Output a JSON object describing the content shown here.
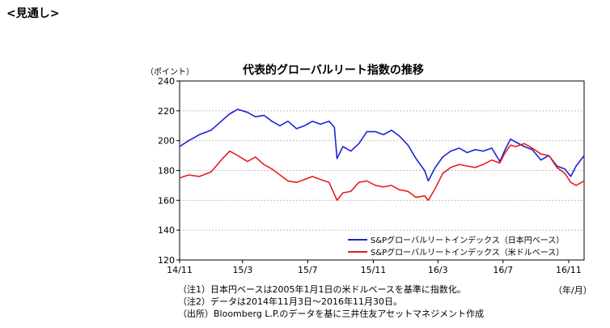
{
  "page": {
    "heading": "<見通し>"
  },
  "chart_data": {
    "type": "line",
    "title": "代表的グローバルリート指数の推移",
    "ylabel": "（ポイント）",
    "xlabel": "（年/月）",
    "ylim": [
      120,
      240
    ],
    "yticks": [
      "120",
      "140",
      "160",
      "180",
      "200",
      "220",
      "240"
    ],
    "xlim": [
      "2014-11-03",
      "2016-11-30"
    ],
    "xticks": [
      {
        "label": "14/11",
        "date": "2014-11-03"
      },
      {
        "label": "15/3",
        "date": "2015-03-01"
      },
      {
        "label": "15/7",
        "date": "2015-07-01"
      },
      {
        "label": "15/11",
        "date": "2015-11-01"
      },
      {
        "label": "16/3",
        "date": "2016-03-01"
      },
      {
        "label": "16/7",
        "date": "2016-07-01"
      },
      {
        "label": "16/11",
        "date": "2016-11-01"
      }
    ],
    "grid": true,
    "legend_position": "bottom-right",
    "series": [
      {
        "name": "S&Pグローバルリートインデックス（日本円ベース）",
        "color": "#1a23d6",
        "points": [
          [
            "2014-11-03",
            196
          ],
          [
            "2014-11-20",
            200
          ],
          [
            "2014-12-10",
            204
          ],
          [
            "2015-01-01",
            207
          ],
          [
            "2015-01-20",
            213
          ],
          [
            "2015-02-05",
            218
          ],
          [
            "2015-02-20",
            221
          ],
          [
            "2015-03-10",
            219
          ],
          [
            "2015-03-25",
            216
          ],
          [
            "2015-04-10",
            217
          ],
          [
            "2015-04-25",
            213
          ],
          [
            "2015-05-10",
            210
          ],
          [
            "2015-05-25",
            213
          ],
          [
            "2015-06-10",
            208
          ],
          [
            "2015-06-25",
            210
          ],
          [
            "2015-07-10",
            213
          ],
          [
            "2015-07-25",
            211
          ],
          [
            "2015-08-10",
            213
          ],
          [
            "2015-08-20",
            209
          ],
          [
            "2015-08-25",
            188
          ],
          [
            "2015-09-05",
            196
          ],
          [
            "2015-09-20",
            193
          ],
          [
            "2015-10-05",
            198
          ],
          [
            "2015-10-20",
            206
          ],
          [
            "2015-11-05",
            206
          ],
          [
            "2015-11-20",
            204
          ],
          [
            "2015-12-05",
            207
          ],
          [
            "2015-12-20",
            203
          ],
          [
            "2016-01-05",
            197
          ],
          [
            "2016-01-20",
            188
          ],
          [
            "2016-02-05",
            180
          ],
          [
            "2016-02-12",
            173
          ],
          [
            "2016-02-25",
            182
          ],
          [
            "2016-03-10",
            189
          ],
          [
            "2016-03-25",
            193
          ],
          [
            "2016-04-10",
            195
          ],
          [
            "2016-04-25",
            192
          ],
          [
            "2016-05-10",
            194
          ],
          [
            "2016-05-25",
            193
          ],
          [
            "2016-06-10",
            195
          ],
          [
            "2016-06-25",
            186
          ],
          [
            "2016-07-05",
            194
          ],
          [
            "2016-07-15",
            201
          ],
          [
            "2016-07-25",
            199
          ],
          [
            "2016-08-10",
            196
          ],
          [
            "2016-08-25",
            194
          ],
          [
            "2016-09-10",
            187
          ],
          [
            "2016-09-25",
            190
          ],
          [
            "2016-10-10",
            183
          ],
          [
            "2016-10-25",
            181
          ],
          [
            "2016-11-05",
            176
          ],
          [
            "2016-11-15",
            183
          ],
          [
            "2016-11-30",
            190
          ]
        ]
      },
      {
        "name": "S&Pグローバルリートインデックス（米ドルベース）",
        "color": "#e61e1e",
        "points": [
          [
            "2014-11-03",
            175
          ],
          [
            "2014-11-20",
            177
          ],
          [
            "2014-12-10",
            176
          ],
          [
            "2015-01-01",
            179
          ],
          [
            "2015-01-20",
            187
          ],
          [
            "2015-02-05",
            193
          ],
          [
            "2015-02-20",
            190
          ],
          [
            "2015-03-10",
            186
          ],
          [
            "2015-03-25",
            189
          ],
          [
            "2015-04-10",
            184
          ],
          [
            "2015-04-25",
            181
          ],
          [
            "2015-05-10",
            177
          ],
          [
            "2015-05-25",
            173
          ],
          [
            "2015-06-10",
            172
          ],
          [
            "2015-06-25",
            174
          ],
          [
            "2015-07-10",
            176
          ],
          [
            "2015-07-25",
            174
          ],
          [
            "2015-08-10",
            172
          ],
          [
            "2015-08-25",
            160
          ],
          [
            "2015-09-05",
            165
          ],
          [
            "2015-09-20",
            166
          ],
          [
            "2015-10-05",
            172
          ],
          [
            "2015-10-20",
            173
          ],
          [
            "2015-11-05",
            170
          ],
          [
            "2015-11-20",
            169
          ],
          [
            "2015-12-05",
            170
          ],
          [
            "2015-12-20",
            167
          ],
          [
            "2016-01-05",
            166
          ],
          [
            "2016-01-20",
            162
          ],
          [
            "2016-02-05",
            163
          ],
          [
            "2016-02-12",
            160
          ],
          [
            "2016-02-25",
            168
          ],
          [
            "2016-03-10",
            178
          ],
          [
            "2016-03-25",
            182
          ],
          [
            "2016-04-10",
            184
          ],
          [
            "2016-04-25",
            183
          ],
          [
            "2016-05-10",
            182
          ],
          [
            "2016-05-25",
            184
          ],
          [
            "2016-06-10",
            187
          ],
          [
            "2016-06-25",
            185
          ],
          [
            "2016-07-05",
            192
          ],
          [
            "2016-07-15",
            197
          ],
          [
            "2016-07-25",
            196
          ],
          [
            "2016-08-10",
            198
          ],
          [
            "2016-08-25",
            195
          ],
          [
            "2016-09-10",
            191
          ],
          [
            "2016-09-25",
            190
          ],
          [
            "2016-10-10",
            182
          ],
          [
            "2016-10-25",
            178
          ],
          [
            "2016-11-05",
            172
          ],
          [
            "2016-11-15",
            170
          ],
          [
            "2016-11-30",
            173
          ]
        ]
      }
    ]
  },
  "notes": [
    "（注1）日本円ベースは2005年1月1日の米ドルベースを基準に指数化。",
    "（注2）データは2014年11月3日～2016年11月30日。",
    "（出所）Bloomberg L.P.のデータを基に三井住友アセットマネジメント作成"
  ]
}
